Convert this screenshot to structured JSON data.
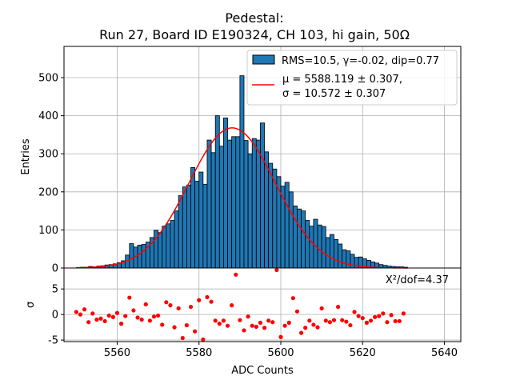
{
  "chart_data": [
    {
      "type": "bar",
      "title_lines": [
        "Pedestal:",
        "Run 27, Board ID E190324, CH 103, hi gain, 50Ω"
      ],
      "xlabel": "",
      "ylabel": "Entries",
      "xlim": [
        5547,
        5644
      ],
      "ylim": [
        0,
        582
      ],
      "yticks": [
        0,
        100,
        200,
        300,
        400,
        500
      ],
      "grid": true,
      "bin_start": 5550,
      "bin_width": 1,
      "values": [
        1,
        2,
        2,
        4,
        3,
        5,
        6,
        8,
        9,
        11,
        14,
        19,
        34,
        64,
        55,
        60,
        62,
        68,
        80,
        99,
        93,
        110,
        116,
        125,
        150,
        190,
        213,
        218,
        264,
        228,
        252,
        220,
        336,
        303,
        400,
        320,
        394,
        336,
        345,
        345,
        505,
        335,
        300,
        340,
        336,
        381,
        305,
        275,
        260,
        240,
        215,
        225,
        200,
        163,
        155,
        150,
        125,
        110,
        128,
        113,
        109,
        80,
        88,
        75,
        63,
        48,
        45,
        36,
        28,
        29,
        24,
        20,
        16,
        13,
        9,
        7,
        5,
        4,
        3,
        3,
        2
      ],
      "bar_color": "#1f77b4",
      "legend_position": "top-right",
      "legend": {
        "hist_label": "RMS=10.5, γ=-0.02, dip=0.77",
        "fit_label_1": "μ = 5588.119 ± 0.307,",
        "fit_label_2": "σ = 10.572 ± 0.307"
      },
      "fit": {
        "type": "gaussian",
        "amplitude": 368,
        "mu": 5588.119,
        "sigma": 10.572,
        "x_range": [
          5550,
          5631
        ],
        "color": "#ff0000"
      }
    },
    {
      "type": "scatter",
      "xlabel": "ADC Counts",
      "ylabel": "σ",
      "xlim": [
        5547,
        5644
      ],
      "ylim": [
        -5.3,
        9.1
      ],
      "xticks": [
        5560,
        5580,
        5600,
        5620,
        5640
      ],
      "yticks": [
        -5,
        0,
        5
      ],
      "grid": true,
      "annotation": "X²/dof=4.37",
      "point_color": "#ff0000",
      "x": [
        5550,
        5551,
        5552,
        5553,
        5554,
        5555,
        5556,
        5557,
        5558,
        5559,
        5560,
        5561,
        5562,
        5563,
        5564,
        5565,
        5566,
        5567,
        5568,
        5569,
        5570,
        5571,
        5572,
        5573,
        5574,
        5575,
        5576,
        5577,
        5578,
        5579,
        5580,
        5581,
        5582,
        5583,
        5584,
        5585,
        5586,
        5587,
        5588,
        5589,
        5590,
        5591,
        5592,
        5593,
        5594,
        5595,
        5596,
        5597,
        5598,
        5599,
        5600,
        5601,
        5602,
        5603,
        5604,
        5605,
        5606,
        5607,
        5608,
        5609,
        5610,
        5611,
        5612,
        5613,
        5614,
        5615,
        5616,
        5617,
        5618,
        5619,
        5620,
        5621,
        5622,
        5623,
        5624,
        5625,
        5626,
        5627,
        5628,
        5629,
        5630
      ],
      "y": [
        0.5,
        0,
        1,
        -1.5,
        0.2,
        -1,
        -0.8,
        -1.3,
        -0.2,
        -0.5,
        0.3,
        -1.8,
        -0.3,
        3.3,
        0.8,
        -0.6,
        -1,
        2,
        -1.2,
        -0.4,
        -0.2,
        -2,
        2.4,
        1.8,
        -2.5,
        1.2,
        -4.6,
        -2.1,
        1.5,
        -3.3,
        2.8,
        -4.9,
        3.4,
        2.5,
        -1.2,
        -1.8,
        -1.2,
        -2.2,
        1.8,
        7.8,
        -1.1,
        -3.1,
        -0.4,
        -2.2,
        -2.4,
        -1.6,
        -2.6,
        -1.2,
        -1.5,
        8.7,
        -4.4,
        -2.2,
        -1.6,
        3.2,
        0.6,
        -3.6,
        -2.6,
        -1.2,
        -2,
        -2.5,
        1.2,
        -1.2,
        -1.5,
        -1.1,
        1.5,
        -1.1,
        -1.4,
        -2.1,
        0.5,
        -0.3,
        -0.7,
        -1.6,
        -1.2,
        -0.5,
        -0.3,
        0.2,
        -1.5,
        -0.1,
        -1.3,
        -1.3,
        0.2
      ]
    }
  ]
}
